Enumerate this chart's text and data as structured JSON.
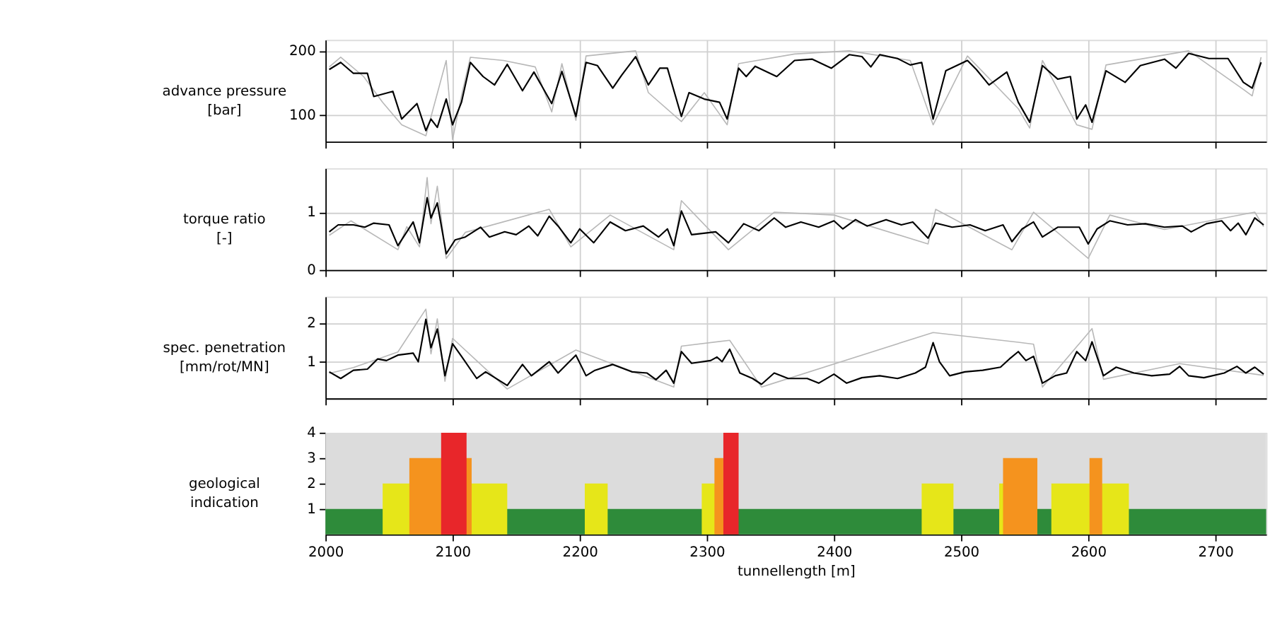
{
  "chart_data": [
    {
      "type": "line",
      "ylabel": "advance pressure\n[bar]",
      "xlim": [
        2000,
        2740
      ],
      "xticks": [
        2000,
        2100,
        2200,
        2300,
        2400,
        2500,
        2600,
        2700
      ],
      "ylim": [
        59,
        217
      ],
      "yticks": [
        100,
        200
      ],
      "grid": true,
      "tick_labels": "y",
      "series": [
        {
          "color": "#b8b8b8",
          "x": [
            2003,
            2012,
            2030,
            2045,
            2060,
            2079,
            2095,
            2100,
            2107,
            2114,
            2140,
            2165,
            2178,
            2186,
            2197,
            2205,
            2244,
            2254,
            2280,
            2298,
            2316,
            2325,
            2369,
            2412,
            2460,
            2478,
            2505,
            2545,
            2554,
            2564,
            2591,
            2603,
            2614,
            2679,
            2722,
            2729,
            2736
          ],
          "values": [
            175,
            190,
            160,
            120,
            85,
            68,
            185,
            62,
            130,
            190,
            185,
            175,
            105,
            180,
            92,
            192,
            200,
            135,
            90,
            135,
            85,
            180,
            195,
            200,
            185,
            85,
            192,
            110,
            80,
            185,
            85,
            78,
            178,
            200,
            140,
            130,
            190
          ]
        },
        {
          "color": "#000000",
          "x": [
            2003,
            2012,
            2022,
            2033,
            2038,
            2053,
            2060,
            2072,
            2079,
            2083,
            2088,
            2095,
            2100,
            2107,
            2114,
            2124,
            2133,
            2143,
            2155,
            2164,
            2178,
            2186,
            2197,
            2205,
            2214,
            2226,
            2233,
            2244,
            2254,
            2263,
            2269,
            2280,
            2286,
            2298,
            2310,
            2316,
            2325,
            2331,
            2338,
            2355,
            2369,
            2383,
            2398,
            2412,
            2422,
            2429,
            2436,
            2450,
            2460,
            2469,
            2478,
            2488,
            2505,
            2512,
            2522,
            2536,
            2545,
            2554,
            2564,
            2576,
            2586,
            2591,
            2598,
            2603,
            2614,
            2629,
            2641,
            2660,
            2669,
            2679,
            2695,
            2710,
            2722,
            2729,
            2736
          ],
          "values": [
            171,
            182,
            165,
            165,
            129,
            137,
            94,
            118,
            76,
            94,
            81,
            125,
            85,
            120,
            182,
            160,
            147,
            179,
            138,
            167,
            118,
            168,
            98,
            182,
            177,
            142,
            162,
            191,
            147,
            173,
            173,
            98,
            135,
            125,
            120,
            94,
            173,
            160,
            176,
            160,
            185,
            187,
            173,
            194,
            191,
            175,
            194,
            188,
            178,
            182,
            94,
            169,
            185,
            171,
            147,
            167,
            120,
            89,
            177,
            156,
            160,
            94,
            116,
            89,
            169,
            151,
            177,
            187,
            173,
            196,
            188,
            188,
            151,
            142,
            182
          ]
        }
      ]
    },
    {
      "type": "line",
      "ylabel": "torque ratio\n[-]",
      "xlim": [
        2000,
        2740
      ],
      "xticks": [
        2000,
        2100,
        2200,
        2300,
        2400,
        2500,
        2600,
        2700
      ],
      "ylim": [
        0,
        1.76
      ],
      "yticks": [
        0,
        1
      ],
      "grid": true,
      "tick_labels": "y",
      "series": [
        {
          "color": "#b8b8b8",
          "x": [
            2003,
            2020,
            2057,
            2064,
            2074,
            2080,
            2083,
            2088,
            2095,
            2110,
            2176,
            2193,
            2224,
            2274,
            2280,
            2317,
            2353,
            2400,
            2474,
            2480,
            2540,
            2557,
            2600,
            2617,
            2660,
            2731,
            2738
          ],
          "values": [
            0.6,
            0.85,
            0.35,
            0.75,
            0.4,
            1.6,
            0.8,
            1.45,
            0.2,
            0.65,
            1.05,
            0.4,
            0.95,
            0.35,
            1.2,
            0.35,
            1.0,
            0.95,
            0.45,
            1.05,
            0.35,
            1.0,
            0.2,
            0.95,
            0.7,
            1.0,
            0.75
          ]
        },
        {
          "color": "#000000",
          "x": [
            2003,
            2010,
            2022,
            2031,
            2038,
            2050,
            2057,
            2064,
            2069,
            2074,
            2080,
            2083,
            2088,
            2095,
            2102,
            2110,
            2122,
            2129,
            2141,
            2150,
            2160,
            2167,
            2176,
            2183,
            2193,
            2200,
            2211,
            2224,
            2236,
            2250,
            2262,
            2269,
            2274,
            2280,
            2288,
            2307,
            2317,
            2329,
            2341,
            2353,
            2362,
            2374,
            2388,
            2400,
            2407,
            2417,
            2426,
            2441,
            2453,
            2462,
            2474,
            2480,
            2493,
            2507,
            2519,
            2533,
            2540,
            2548,
            2557,
            2564,
            2576,
            2593,
            2600,
            2607,
            2617,
            2631,
            2645,
            2660,
            2674,
            2681,
            2693,
            2705,
            2712,
            2718,
            2724,
            2731,
            2738
          ],
          "values": [
            0.66,
            0.78,
            0.78,
            0.74,
            0.81,
            0.78,
            0.42,
            0.66,
            0.83,
            0.47,
            1.25,
            0.9,
            1.16,
            0.28,
            0.52,
            0.57,
            0.74,
            0.57,
            0.66,
            0.61,
            0.76,
            0.59,
            0.93,
            0.76,
            0.47,
            0.71,
            0.47,
            0.83,
            0.68,
            0.76,
            0.57,
            0.71,
            0.42,
            1.02,
            0.61,
            0.66,
            0.47,
            0.8,
            0.68,
            0.9,
            0.74,
            0.83,
            0.74,
            0.85,
            0.71,
            0.87,
            0.76,
            0.87,
            0.78,
            0.83,
            0.55,
            0.81,
            0.74,
            0.78,
            0.68,
            0.78,
            0.49,
            0.71,
            0.83,
            0.57,
            0.74,
            0.74,
            0.45,
            0.71,
            0.85,
            0.78,
            0.8,
            0.74,
            0.76,
            0.66,
            0.8,
            0.85,
            0.68,
            0.81,
            0.61,
            0.9,
            0.78
          ]
        }
      ]
    },
    {
      "type": "line",
      "ylabel": "spec. penetration\n[mm/rot/MN]",
      "xlim": [
        2000,
        2740
      ],
      "xticks": [
        2000,
        2100,
        2200,
        2300,
        2400,
        2500,
        2600,
        2700
      ],
      "ylim": [
        0.06,
        2.67
      ],
      "yticks": [
        1,
        2
      ],
      "grid": true,
      "tick_labels": "y",
      "series": [
        {
          "color": "#b8b8b8",
          "x": [
            2003,
            2022,
            2057,
            2079,
            2083,
            2088,
            2094,
            2100,
            2143,
            2197,
            2274,
            2280,
            2318,
            2343,
            2478,
            2545,
            2557,
            2564,
            2603,
            2612,
            2672,
            2738
          ],
          "values": [
            0.7,
            0.85,
            1.25,
            2.35,
            1.2,
            2.1,
            0.5,
            1.6,
            0.3,
            1.3,
            0.35,
            1.4,
            1.55,
            0.35,
            1.75,
            1.5,
            1.45,
            0.35,
            1.85,
            0.55,
            0.95,
            0.65
          ]
        },
        {
          "color": "#000000",
          "x": [
            2003,
            2012,
            2022,
            2033,
            2041,
            2048,
            2057,
            2069,
            2073,
            2079,
            2083,
            2088,
            2094,
            2100,
            2107,
            2119,
            2126,
            2143,
            2155,
            2162,
            2176,
            2183,
            2197,
            2205,
            2212,
            2226,
            2241,
            2253,
            2260,
            2268,
            2274,
            2280,
            2288,
            2303,
            2308,
            2312,
            2318,
            2326,
            2336,
            2343,
            2353,
            2364,
            2379,
            2388,
            2400,
            2410,
            2422,
            2436,
            2450,
            2464,
            2472,
            2478,
            2483,
            2491,
            2503,
            2517,
            2531,
            2538,
            2545,
            2551,
            2557,
            2564,
            2574,
            2583,
            2591,
            2598,
            2603,
            2612,
            2622,
            2636,
            2650,
            2664,
            2672,
            2679,
            2691,
            2707,
            2717,
            2724,
            2731,
            2738
          ],
          "values": [
            0.74,
            0.57,
            0.78,
            0.81,
            1.07,
            1.03,
            1.17,
            1.22,
            1.0,
            2.09,
            1.36,
            1.84,
            0.64,
            1.46,
            1.14,
            0.57,
            0.74,
            0.39,
            0.93,
            0.64,
            1.0,
            0.71,
            1.17,
            0.64,
            0.78,
            0.93,
            0.74,
            0.71,
            0.54,
            0.78,
            0.45,
            1.26,
            0.96,
            1.03,
            1.12,
            1.0,
            1.32,
            0.71,
            0.57,
            0.42,
            0.71,
            0.57,
            0.57,
            0.45,
            0.68,
            0.45,
            0.59,
            0.64,
            0.57,
            0.71,
            0.86,
            1.49,
            1.0,
            0.64,
            0.74,
            0.78,
            0.86,
            1.07,
            1.26,
            1.03,
            1.14,
            0.45,
            0.64,
            0.71,
            1.26,
            1.03,
            1.51,
            0.64,
            0.86,
            0.71,
            0.64,
            0.68,
            0.88,
            0.64,
            0.59,
            0.71,
            0.88,
            0.71,
            0.86,
            0.68
          ]
        }
      ]
    },
    {
      "type": "area",
      "ylabel": "geological\nindication",
      "xlabel": "tunnellength [m]",
      "xlim": [
        2000,
        2740
      ],
      "xticks": [
        2000,
        2100,
        2200,
        2300,
        2400,
        2500,
        2600,
        2700
      ],
      "ylim": [
        0,
        4
      ],
      "yticks": [
        1,
        2,
        3,
        4
      ],
      "grid": "x",
      "bands": [
        {
          "axis": "y",
          "from": 0,
          "to": 4,
          "color": "#dcdcdc"
        }
      ],
      "series": [
        {
          "color": "#2e8b3a",
          "x": [
            2000,
            2740
          ],
          "values": [
            1,
            1
          ]
        },
        {
          "color": "#e6e619",
          "x": [
            2045,
            2143,
            2204,
            2222,
            2296,
            2313,
            2469,
            2494,
            2530,
            2560,
            2571,
            2632
          ],
          "values": [
            2,
            0,
            2,
            0,
            2,
            0,
            2,
            0,
            2,
            0,
            2,
            0
          ]
        },
        {
          "color": "#f5931e",
          "x": [
            2066,
            2115,
            2306,
            2313,
            2533,
            2560,
            2601,
            2611
          ],
          "values": [
            3,
            0,
            3,
            0,
            3,
            0,
            3,
            0
          ]
        },
        {
          "color": "#e8262a",
          "x": [
            2091,
            2111,
            2313,
            2325
          ],
          "values": [
            4,
            0,
            4,
            0
          ]
        }
      ]
    }
  ]
}
